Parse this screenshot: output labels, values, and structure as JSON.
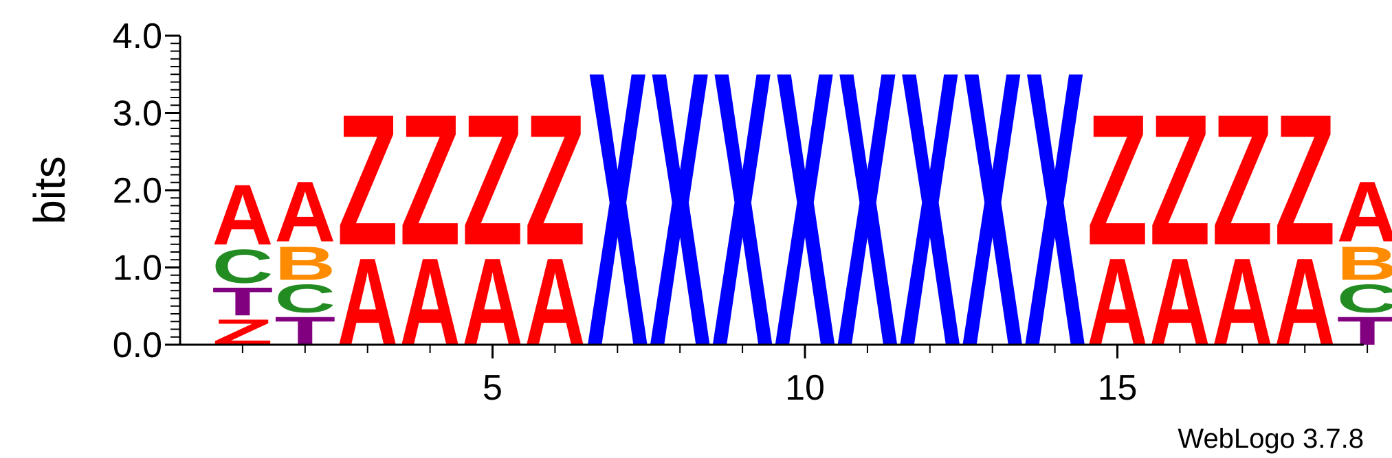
{
  "chart_data": {
    "type": "sequence-logo",
    "ylabel": "bits",
    "ylim": [
      0,
      4.0
    ],
    "y_ticks": [
      "0.0",
      "1.0",
      "2.0",
      "3.0",
      "4.0"
    ],
    "x_tick_labels": [
      "5",
      "10",
      "15"
    ],
    "x_tick_positions": [
      5,
      10,
      15
    ],
    "positions": [
      {
        "pos": 1,
        "stack": [
          {
            "letter": "Z",
            "bits": 0.38
          },
          {
            "letter": "T",
            "bits": 0.42
          },
          {
            "letter": "C",
            "bits": 0.5
          },
          {
            "letter": "A",
            "bits": 0.9
          }
        ]
      },
      {
        "pos": 2,
        "stack": [
          {
            "letter": "T",
            "bits": 0.42
          },
          {
            "letter": "C",
            "bits": 0.42
          },
          {
            "letter": "B",
            "bits": 0.5
          },
          {
            "letter": "A",
            "bits": 0.9
          }
        ]
      },
      {
        "pos": 3,
        "stack": [
          {
            "letter": "A",
            "bits": 1.3
          },
          {
            "letter": "Z",
            "bits": 1.95
          }
        ]
      },
      {
        "pos": 4,
        "stack": [
          {
            "letter": "A",
            "bits": 1.3
          },
          {
            "letter": "Z",
            "bits": 1.95
          }
        ]
      },
      {
        "pos": 5,
        "stack": [
          {
            "letter": "A",
            "bits": 1.3
          },
          {
            "letter": "Z",
            "bits": 1.95
          }
        ]
      },
      {
        "pos": 6,
        "stack": [
          {
            "letter": "A",
            "bits": 1.3
          },
          {
            "letter": "Z",
            "bits": 1.95
          }
        ]
      },
      {
        "pos": 7,
        "stack": [
          {
            "letter": "X",
            "bits": 4.1
          }
        ]
      },
      {
        "pos": 8,
        "stack": [
          {
            "letter": "X",
            "bits": 4.1
          }
        ]
      },
      {
        "pos": 9,
        "stack": [
          {
            "letter": "X",
            "bits": 4.1
          }
        ]
      },
      {
        "pos": 10,
        "stack": [
          {
            "letter": "X",
            "bits": 4.1
          }
        ]
      },
      {
        "pos": 11,
        "stack": [
          {
            "letter": "X",
            "bits": 4.1
          }
        ]
      },
      {
        "pos": 12,
        "stack": [
          {
            "letter": "X",
            "bits": 4.1
          }
        ]
      },
      {
        "pos": 13,
        "stack": [
          {
            "letter": "X",
            "bits": 4.1
          }
        ]
      },
      {
        "pos": 14,
        "stack": [
          {
            "letter": "X",
            "bits": 4.1
          }
        ]
      },
      {
        "pos": 15,
        "stack": [
          {
            "letter": "A",
            "bits": 1.3
          },
          {
            "letter": "Z",
            "bits": 1.95
          }
        ]
      },
      {
        "pos": 16,
        "stack": [
          {
            "letter": "A",
            "bits": 1.3
          },
          {
            "letter": "Z",
            "bits": 1.95
          }
        ]
      },
      {
        "pos": 17,
        "stack": [
          {
            "letter": "A",
            "bits": 1.3
          },
          {
            "letter": "Z",
            "bits": 1.95
          }
        ]
      },
      {
        "pos": 18,
        "stack": [
          {
            "letter": "A",
            "bits": 1.3
          },
          {
            "letter": "Z",
            "bits": 1.95
          }
        ]
      },
      {
        "pos": 19,
        "stack": [
          {
            "letter": "T",
            "bits": 0.42
          },
          {
            "letter": "C",
            "bits": 0.42
          },
          {
            "letter": "B",
            "bits": 0.5
          },
          {
            "letter": "A",
            "bits": 0.9
          }
        ]
      }
    ],
    "colors": {
      "A": "#ff0000",
      "Z": "#ff0000",
      "X": "#0000ff",
      "C": "#228b22",
      "T": "#800080",
      "B": "#ff8c00"
    },
    "grid": false
  },
  "footer": {
    "version_text": "WebLogo 3.7.8"
  }
}
